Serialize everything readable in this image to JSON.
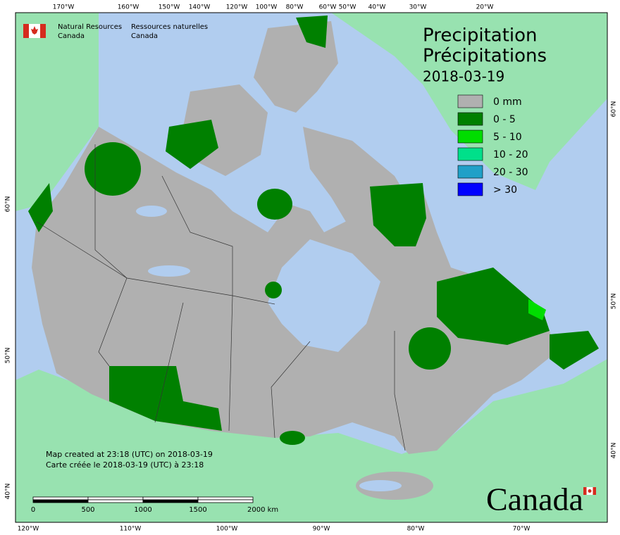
{
  "header": {
    "agency_en": [
      "Natural Resources",
      "Canada"
    ],
    "agency_fr": [
      "Ressources naturelles",
      "Canada"
    ]
  },
  "title": {
    "line1": "Precipitation",
    "line2": "Précipitations",
    "date": "2018-03-19"
  },
  "legend": [
    {
      "label": "0 mm",
      "color": "#b0b0b0"
    },
    {
      "label": "0 - 5",
      "color": "#008000"
    },
    {
      "label": "5 - 10",
      "color": "#00dd00"
    },
    {
      "label": "10 - 20",
      "color": "#00e08a"
    },
    {
      "label": "20 - 30",
      "color": "#20a0c8"
    },
    {
      "label": "> 30",
      "color": "#0000ff"
    }
  ],
  "graticule": {
    "top": [
      "170°W",
      "160°W",
      "150°W",
      "140°W",
      "120°W",
      "100°W",
      "80°W",
      "60°W",
      "50°W",
      "40°W",
      "30°W",
      "20°W"
    ],
    "bottom": [
      "120°W",
      "110°W",
      "100°W",
      "90°W",
      "80°W",
      "70°W"
    ],
    "left": [
      "60°N",
      "50°N",
      "40°N"
    ],
    "right": [
      "60°N",
      "50°N",
      "40°N"
    ]
  },
  "credits": [
    "Map created at 23:18 (UTC) on 2018-03-19",
    "Carte créée le 2018-03-19 (UTC) à 23:18"
  ],
  "scale_bar": [
    "0",
    "500",
    "1000",
    "1500",
    "2000 km"
  ],
  "wordmark": "Canada"
}
